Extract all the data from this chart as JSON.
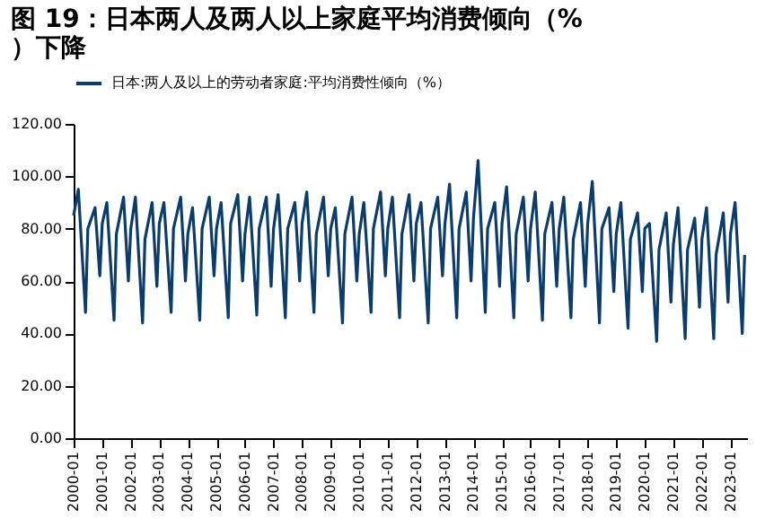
{
  "chart_data": {
    "type": "line",
    "title": "图 19：日本两人及两人以上家庭平均消费倾向（%）下降",
    "x": [
      "2000-01",
      "2000-03",
      "2000-06",
      "2000-07",
      "2000-10",
      "2000-12",
      "2001-01",
      "2001-03",
      "2001-06",
      "2001-07",
      "2001-10",
      "2001-12",
      "2002-01",
      "2002-03",
      "2002-06",
      "2002-07",
      "2002-10",
      "2002-12",
      "2003-01",
      "2003-03",
      "2003-06",
      "2003-07",
      "2003-10",
      "2003-12",
      "2004-01",
      "2004-03",
      "2004-06",
      "2004-07",
      "2004-10",
      "2004-12",
      "2005-01",
      "2005-03",
      "2005-06",
      "2005-07",
      "2005-10",
      "2005-12",
      "2006-01",
      "2006-03",
      "2006-06",
      "2006-07",
      "2006-10",
      "2006-12",
      "2007-01",
      "2007-03",
      "2007-06",
      "2007-07",
      "2007-10",
      "2007-12",
      "2008-01",
      "2008-03",
      "2008-06",
      "2008-07",
      "2008-10",
      "2008-12",
      "2009-01",
      "2009-03",
      "2009-06",
      "2009-07",
      "2009-10",
      "2009-12",
      "2010-01",
      "2010-03",
      "2010-06",
      "2010-07",
      "2010-10",
      "2010-12",
      "2011-01",
      "2011-03",
      "2011-06",
      "2011-07",
      "2011-10",
      "2011-12",
      "2012-01",
      "2012-03",
      "2012-06",
      "2012-07",
      "2012-10",
      "2012-12",
      "2013-01",
      "2013-03",
      "2013-06",
      "2013-07",
      "2013-10",
      "2013-12",
      "2014-01",
      "2014-03",
      "2014-06",
      "2014-07",
      "2014-10",
      "2014-12",
      "2015-01",
      "2015-03",
      "2015-06",
      "2015-07",
      "2015-10",
      "2015-12",
      "2016-01",
      "2016-03",
      "2016-06",
      "2016-07",
      "2016-10",
      "2016-12",
      "2017-01",
      "2017-03",
      "2017-06",
      "2017-07",
      "2017-10",
      "2017-12",
      "2018-01",
      "2018-03",
      "2018-06",
      "2018-07",
      "2018-10",
      "2018-12",
      "2019-01",
      "2019-03",
      "2019-06",
      "2019-07",
      "2019-10",
      "2019-12",
      "2020-01",
      "2020-03",
      "2020-06",
      "2020-07",
      "2020-10",
      "2020-12",
      "2021-01",
      "2021-03",
      "2021-06",
      "2021-07",
      "2021-10",
      "2021-12",
      "2022-01",
      "2022-03",
      "2022-06",
      "2022-07",
      "2022-10",
      "2022-12",
      "2023-01",
      "2023-03",
      "2023-06",
      "2023-07"
    ],
    "series": [
      {
        "name": "日本:两人及以上的劳动者家庭:平均消费性倾向（%）",
        "color": "#0b3c6e",
        "values": [
          85,
          95,
          48,
          80,
          88,
          62,
          82,
          90,
          45,
          78,
          92,
          60,
          80,
          92,
          44,
          76,
          90,
          58,
          82,
          90,
          48,
          80,
          92,
          60,
          78,
          88,
          45,
          80,
          92,
          62,
          80,
          90,
          46,
          82,
          93,
          60,
          78,
          92,
          47,
          80,
          92,
          58,
          80,
          93,
          46,
          80,
          90,
          60,
          82,
          94,
          48,
          78,
          92,
          62,
          80,
          88,
          44,
          78,
          92,
          60,
          78,
          90,
          48,
          80,
          94,
          62,
          80,
          92,
          46,
          78,
          93,
          60,
          82,
          90,
          44,
          80,
          92,
          62,
          82,
          97,
          46,
          80,
          94,
          60,
          84,
          106,
          48,
          80,
          90,
          58,
          82,
          96,
          46,
          78,
          92,
          60,
          80,
          94,
          45,
          78,
          90,
          58,
          80,
          92,
          46,
          76,
          90,
          58,
          82,
          98,
          44,
          80,
          88,
          56,
          78,
          90,
          42,
          76,
          86,
          56,
          80,
          82,
          37,
          72,
          86,
          52,
          74,
          88,
          38,
          72,
          84,
          50,
          76,
          88,
          38,
          70,
          86,
          52,
          78,
          90,
          40,
          70
        ]
      }
    ],
    "xlim": [
      "2000-01",
      "2023-08"
    ],
    "xticks": [
      "2000-01",
      "2001-01",
      "2002-01",
      "2003-01",
      "2004-01",
      "2005-01",
      "2006-01",
      "2007-01",
      "2008-01",
      "2009-01",
      "2010-01",
      "2011-01",
      "2012-01",
      "2013-01",
      "2014-01",
      "2015-01",
      "2016-01",
      "2017-01",
      "2018-01",
      "2019-01",
      "2020-01",
      "2021-01",
      "2022-01",
      "2023-01"
    ],
    "ylim": [
      0,
      120
    ],
    "yticks": [
      {
        "value": 0,
        "label": "0.00"
      },
      {
        "value": 20,
        "label": "20.00"
      },
      {
        "value": 40,
        "label": "40.00"
      },
      {
        "value": 60,
        "label": "60.00"
      },
      {
        "value": 80,
        "label": "80.00"
      },
      {
        "value": 100,
        "label": "100.00"
      },
      {
        "value": 120,
        "label": "120.00"
      }
    ],
    "legend": "top",
    "grid": false
  }
}
